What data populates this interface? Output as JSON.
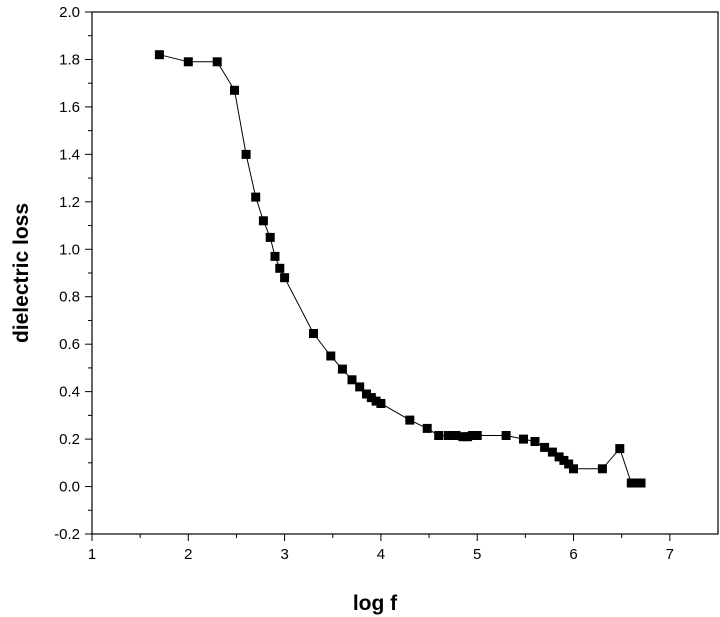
{
  "chart_data": {
    "type": "scatter",
    "xlabel": "log f",
    "ylabel": "dielectric loss",
    "xlim": [
      1,
      7.5
    ],
    "ylim": [
      -0.2,
      2.0
    ],
    "x_ticks": [
      1,
      2,
      3,
      4,
      5,
      6,
      7
    ],
    "y_ticks": [
      -0.2,
      0.0,
      0.2,
      0.4,
      0.6,
      0.8,
      1.0,
      1.2,
      1.4,
      1.6,
      1.8,
      2.0
    ],
    "x_tick_labels": [
      "1",
      "2",
      "3",
      "4",
      "5",
      "6",
      "7"
    ],
    "y_tick_labels": [
      "-0.2",
      "0.0",
      "0.2",
      "0.4",
      "0.6",
      "0.8",
      "1.0",
      "1.2",
      "1.4",
      "1.6",
      "1.8",
      "2.0"
    ],
    "grid": false,
    "marker": "square",
    "line": true,
    "color": "#000000",
    "series": [
      {
        "x": [
          1.7,
          2.0,
          2.3,
          2.48,
          2.6,
          2.7,
          2.78,
          2.85,
          2.9,
          2.95,
          3.0,
          3.3,
          3.48,
          3.6,
          3.7,
          3.78,
          3.85,
          3.9,
          3.95,
          4.0,
          4.3,
          4.48,
          4.6,
          4.7,
          4.78,
          4.85,
          4.9,
          4.95,
          5.0,
          5.3,
          5.48,
          5.6,
          5.7,
          5.78,
          5.85,
          5.9,
          5.95,
          6.0,
          6.3,
          6.48,
          6.6,
          6.65,
          6.7
        ],
        "y": [
          1.82,
          1.79,
          1.79,
          1.67,
          1.4,
          1.22,
          1.12,
          1.05,
          0.97,
          0.92,
          0.88,
          0.645,
          0.55,
          0.495,
          0.45,
          0.42,
          0.39,
          0.375,
          0.36,
          0.35,
          0.28,
          0.245,
          0.215,
          0.215,
          0.215,
          0.21,
          0.21,
          0.215,
          0.215,
          0.215,
          0.2,
          0.19,
          0.165,
          0.145,
          0.125,
          0.11,
          0.095,
          0.075,
          0.075,
          0.16,
          0.015,
          0.015,
          0.015
        ]
      }
    ]
  }
}
